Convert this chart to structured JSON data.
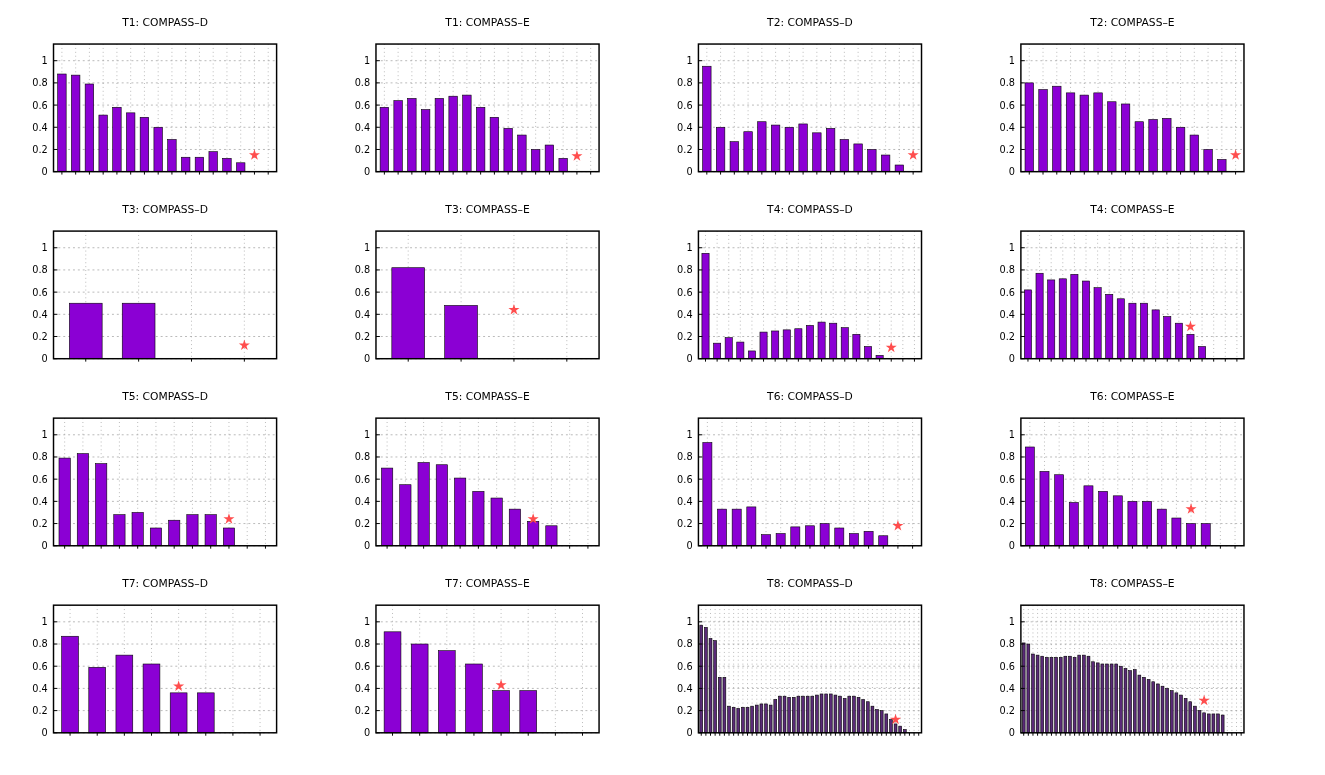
{
  "chart_data": [
    {
      "type": "bar",
      "title": "T1: COMPASS–D",
      "categories": [
        null,
        null,
        null,
        null,
        null,
        null,
        null,
        null,
        null,
        null,
        null,
        null,
        null,
        null,
        null,
        null
      ],
      "ylim": [
        0,
        1.15
      ],
      "yticks": [
        0,
        0.2,
        0.4,
        0.6,
        0.8,
        1
      ],
      "grid": true,
      "series": [
        {
          "color": "#8b00d4",
          "values": [
            0.88,
            0.87,
            0.79,
            0.51,
            0.58,
            0.53,
            0.49,
            0.4,
            0.29,
            0.13,
            0.13,
            0.18,
            0.12,
            0.08,
            null,
            null
          ]
        },
        {
          "type": "scatter",
          "marker": "star",
          "color": "#ff4d4d",
          "values": [
            null,
            null,
            null,
            null,
            null,
            null,
            null,
            null,
            null,
            null,
            null,
            null,
            null,
            null,
            0.15,
            null
          ]
        }
      ]
    },
    {
      "type": "bar",
      "title": "T1: COMPASS–E",
      "categories": [
        null,
        null,
        null,
        null,
        null,
        null,
        null,
        null,
        null,
        null,
        null,
        null,
        null,
        null,
        null,
        null
      ],
      "ylim": [
        0,
        1.15
      ],
      "yticks": [
        0,
        0.2,
        0.4,
        0.6,
        0.8,
        1
      ],
      "grid": true,
      "series": [
        {
          "color": "#8b00d4",
          "values": [
            0.58,
            0.64,
            0.66,
            0.56,
            0.66,
            0.68,
            0.69,
            0.58,
            0.49,
            0.39,
            0.33,
            0.2,
            0.24,
            0.12,
            null,
            null
          ]
        },
        {
          "type": "scatter",
          "marker": "star",
          "color": "#ff4d4d",
          "values": [
            null,
            null,
            null,
            null,
            null,
            null,
            null,
            null,
            null,
            null,
            null,
            null,
            null,
            null,
            0.14,
            null
          ]
        }
      ]
    },
    {
      "type": "bar",
      "title": "T2: COMPASS–D",
      "categories": [
        null,
        null,
        null,
        null,
        null,
        null,
        null,
        null,
        null,
        null,
        null,
        null,
        null,
        null,
        null,
        null
      ],
      "ylim": [
        0,
        1.15
      ],
      "yticks": [
        0,
        0.2,
        0.4,
        0.6,
        0.8,
        1
      ],
      "grid": true,
      "series": [
        {
          "color": "#8b00d4",
          "values": [
            0.95,
            0.4,
            0.27,
            0.36,
            0.45,
            0.42,
            0.4,
            0.43,
            0.35,
            0.39,
            0.29,
            0.25,
            0.2,
            0.15,
            0.06,
            null
          ]
        },
        {
          "type": "scatter",
          "marker": "star",
          "color": "#ff4d4d",
          "values": [
            null,
            null,
            null,
            null,
            null,
            null,
            null,
            null,
            null,
            null,
            null,
            null,
            null,
            null,
            null,
            0.15
          ]
        }
      ]
    },
    {
      "type": "bar",
      "title": "T2: COMPASS–E",
      "categories": [
        null,
        null,
        null,
        null,
        null,
        null,
        null,
        null,
        null,
        null,
        null,
        null,
        null,
        null,
        null,
        null
      ],
      "ylim": [
        0,
        1.15
      ],
      "yticks": [
        0,
        0.2,
        0.4,
        0.6,
        0.8,
        1
      ],
      "grid": true,
      "series": [
        {
          "color": "#8b00d4",
          "values": [
            0.8,
            0.74,
            0.77,
            0.71,
            0.69,
            0.71,
            0.63,
            0.61,
            0.45,
            0.47,
            0.48,
            0.4,
            0.33,
            0.2,
            0.11,
            null
          ]
        },
        {
          "type": "scatter",
          "marker": "star",
          "color": "#ff4d4d",
          "values": [
            null,
            null,
            null,
            null,
            null,
            null,
            null,
            null,
            null,
            null,
            null,
            null,
            null,
            null,
            null,
            0.15
          ]
        }
      ]
    },
    {
      "type": "bar",
      "title": "T3: COMPASS–D",
      "categories": [
        null,
        null,
        null,
        null
      ],
      "ylim": [
        0,
        1.15
      ],
      "yticks": [
        0,
        0.2,
        0.4,
        0.6,
        0.8,
        1
      ],
      "grid": true,
      "series": [
        {
          "color": "#8b00d4",
          "values": [
            0.5,
            0.5,
            null,
            null
          ]
        },
        {
          "type": "scatter",
          "marker": "star",
          "color": "#ff4d4d",
          "values": [
            null,
            null,
            null,
            0.12
          ]
        }
      ]
    },
    {
      "type": "bar",
      "title": "T3: COMPASS–E",
      "categories": [
        null,
        null,
        null,
        null
      ],
      "ylim": [
        0,
        1.15
      ],
      "yticks": [
        0,
        0.2,
        0.4,
        0.6,
        0.8,
        1
      ],
      "grid": true,
      "series": [
        {
          "color": "#8b00d4",
          "values": [
            0.82,
            0.48,
            null,
            null
          ]
        },
        {
          "type": "scatter",
          "marker": "star",
          "color": "#ff4d4d",
          "values": [
            null,
            null,
            0.44,
            null
          ]
        }
      ]
    },
    {
      "type": "bar",
      "title": "T4: COMPASS–D",
      "categories": [
        null,
        null,
        null,
        null,
        null,
        null,
        null,
        null,
        null,
        null,
        null,
        null,
        null,
        null,
        null,
        null,
        null,
        null,
        null
      ],
      "ylim": [
        0,
        1.15
      ],
      "yticks": [
        0,
        0.2,
        0.4,
        0.6,
        0.8,
        1
      ],
      "grid": true,
      "series": [
        {
          "color": "#8b00d4",
          "values": [
            0.95,
            0.14,
            0.19,
            0.15,
            0.07,
            0.24,
            0.25,
            0.26,
            0.27,
            0.3,
            0.33,
            0.32,
            0.28,
            0.22,
            0.11,
            0.03,
            null,
            null,
            null
          ]
        },
        {
          "type": "scatter",
          "marker": "star",
          "color": "#ff4d4d",
          "values": [
            null,
            null,
            null,
            null,
            null,
            null,
            null,
            null,
            null,
            null,
            null,
            null,
            null,
            null,
            null,
            null,
            0.1,
            null,
            null
          ]
        }
      ]
    },
    {
      "type": "bar",
      "title": "T4: COMPASS–E",
      "categories": [
        null,
        null,
        null,
        null,
        null,
        null,
        null,
        null,
        null,
        null,
        null,
        null,
        null,
        null,
        null,
        null,
        null,
        null,
        null
      ],
      "ylim": [
        0,
        1.15
      ],
      "yticks": [
        0,
        0.2,
        0.4,
        0.6,
        0.8,
        1
      ],
      "grid": true,
      "series": [
        {
          "color": "#8b00d4",
          "values": [
            0.62,
            0.77,
            0.71,
            0.72,
            0.76,
            0.7,
            0.64,
            0.58,
            0.54,
            0.5,
            0.5,
            0.44,
            0.38,
            0.32,
            0.22,
            0.11,
            null,
            null,
            null
          ]
        },
        {
          "type": "scatter",
          "marker": "star",
          "color": "#ff4d4d",
          "values": [
            null,
            null,
            null,
            null,
            null,
            null,
            null,
            null,
            null,
            null,
            null,
            null,
            null,
            null,
            0.29,
            null,
            null,
            null,
            null
          ]
        }
      ]
    },
    {
      "type": "bar",
      "title": "T5: COMPASS–D",
      "categories": [
        null,
        null,
        null,
        null,
        null,
        null,
        null,
        null,
        null,
        null,
        null,
        null
      ],
      "ylim": [
        0,
        1.15
      ],
      "yticks": [
        0,
        0.2,
        0.4,
        0.6,
        0.8,
        1
      ],
      "grid": true,
      "series": [
        {
          "color": "#8b00d4",
          "values": [
            0.79,
            0.83,
            0.74,
            0.28,
            0.3,
            0.16,
            0.23,
            0.28,
            0.28,
            0.16,
            null,
            null
          ]
        },
        {
          "type": "scatter",
          "marker": "star",
          "color": "#ff4d4d",
          "values": [
            null,
            null,
            null,
            null,
            null,
            null,
            null,
            null,
            null,
            0.24,
            null,
            null
          ]
        }
      ]
    },
    {
      "type": "bar",
      "title": "T5: COMPASS–E",
      "categories": [
        null,
        null,
        null,
        null,
        null,
        null,
        null,
        null,
        null,
        null,
        null,
        null
      ],
      "ylim": [
        0,
        1.15
      ],
      "yticks": [
        0,
        0.2,
        0.4,
        0.6,
        0.8,
        1
      ],
      "grid": true,
      "series": [
        {
          "color": "#8b00d4",
          "values": [
            0.7,
            0.55,
            0.75,
            0.73,
            0.61,
            0.49,
            0.43,
            0.33,
            0.22,
            0.18,
            null,
            null
          ]
        },
        {
          "type": "scatter",
          "marker": "star",
          "color": "#ff4d4d",
          "values": [
            null,
            null,
            null,
            null,
            null,
            null,
            null,
            null,
            0.24,
            null,
            null,
            null
          ]
        }
      ]
    },
    {
      "type": "bar",
      "title": "T6: COMPASS–D",
      "categories": [
        null,
        null,
        null,
        null,
        null,
        null,
        null,
        null,
        null,
        null,
        null,
        null,
        null,
        null,
        null
      ],
      "ylim": [
        0,
        1.15
      ],
      "yticks": [
        0,
        0.2,
        0.4,
        0.6,
        0.8,
        1
      ],
      "grid": true,
      "series": [
        {
          "color": "#8b00d4",
          "values": [
            0.93,
            0.33,
            0.33,
            0.35,
            0.1,
            0.11,
            0.17,
            0.18,
            0.2,
            0.16,
            0.11,
            0.13,
            0.09,
            null,
            null
          ]
        },
        {
          "type": "scatter",
          "marker": "star",
          "color": "#ff4d4d",
          "values": [
            null,
            null,
            null,
            null,
            null,
            null,
            null,
            null,
            null,
            null,
            null,
            null,
            null,
            0.18,
            null
          ]
        }
      ]
    },
    {
      "type": "bar",
      "title": "T6: COMPASS–E",
      "categories": [
        null,
        null,
        null,
        null,
        null,
        null,
        null,
        null,
        null,
        null,
        null,
        null,
        null,
        null,
        null
      ],
      "ylim": [
        0,
        1.15
      ],
      "yticks": [
        0,
        0.2,
        0.4,
        0.6,
        0.8,
        1
      ],
      "grid": true,
      "series": [
        {
          "color": "#8b00d4",
          "values": [
            0.89,
            0.67,
            0.64,
            0.39,
            0.54,
            0.49,
            0.45,
            0.4,
            0.4,
            0.33,
            0.25,
            0.2,
            0.2,
            null,
            null
          ]
        },
        {
          "type": "scatter",
          "marker": "star",
          "color": "#ff4d4d",
          "values": [
            null,
            null,
            null,
            null,
            null,
            null,
            null,
            null,
            null,
            null,
            null,
            0.33,
            null,
            null,
            null
          ]
        }
      ]
    },
    {
      "type": "bar",
      "title": "T7: COMPASS–D",
      "categories": [
        null,
        null,
        null,
        null,
        null,
        null,
        null,
        null
      ],
      "ylim": [
        0,
        1.15
      ],
      "yticks": [
        0,
        0.2,
        0.4,
        0.6,
        0.8,
        1
      ],
      "grid": true,
      "series": [
        {
          "color": "#8b00d4",
          "values": [
            0.87,
            0.59,
            0.7,
            0.62,
            0.36,
            0.36,
            null,
            null
          ]
        },
        {
          "type": "scatter",
          "marker": "star",
          "color": "#ff4d4d",
          "values": [
            null,
            null,
            null,
            null,
            0.42,
            null,
            null,
            null
          ]
        }
      ]
    },
    {
      "type": "bar",
      "title": "T7: COMPASS–E",
      "categories": [
        null,
        null,
        null,
        null,
        null,
        null,
        null,
        null
      ],
      "ylim": [
        0,
        1.15
      ],
      "yticks": [
        0,
        0.2,
        0.4,
        0.6,
        0.8,
        1
      ],
      "grid": true,
      "series": [
        {
          "color": "#8b00d4",
          "values": [
            0.91,
            0.8,
            0.74,
            0.62,
            0.38,
            0.38,
            null,
            null
          ]
        },
        {
          "type": "scatter",
          "marker": "star",
          "color": "#ff4d4d",
          "values": [
            null,
            null,
            null,
            null,
            0.43,
            null,
            null,
            null
          ]
        }
      ]
    },
    {
      "type": "bar",
      "title": "T8: COMPASS–D",
      "categories": [
        null,
        null,
        null,
        null,
        null,
        null,
        null,
        null,
        null,
        null,
        null,
        null,
        null,
        null,
        null,
        null,
        null,
        null,
        null,
        null,
        null,
        null,
        null,
        null,
        null,
        null,
        null,
        null,
        null,
        null,
        null,
        null,
        null,
        null,
        null,
        null,
        null,
        null,
        null,
        null,
        null,
        null,
        null,
        null,
        null,
        null,
        null,
        null
      ],
      "ylim": [
        0,
        1.15
      ],
      "yticks": [
        0,
        0.2,
        0.4,
        0.6,
        0.8,
        1
      ],
      "grid": true,
      "series": [
        {
          "color": "#5a2a78",
          "values": [
            0.97,
            0.95,
            0.85,
            0.83,
            0.5,
            0.5,
            0.24,
            0.23,
            0.22,
            0.23,
            0.23,
            0.24,
            0.25,
            0.26,
            0.26,
            0.25,
            0.3,
            0.33,
            0.33,
            0.32,
            0.32,
            0.33,
            0.33,
            0.33,
            0.33,
            0.34,
            0.35,
            0.35,
            0.35,
            0.34,
            0.33,
            0.31,
            0.33,
            0.33,
            0.32,
            0.3,
            0.28,
            0.24,
            0.21,
            0.2,
            0.17,
            0.12,
            0.08,
            0.06,
            0.03,
            null,
            null,
            null
          ]
        },
        {
          "type": "scatter",
          "marker": "star",
          "color": "#ff4d4d",
          "values": [
            null,
            null,
            null,
            null,
            null,
            null,
            null,
            null,
            null,
            null,
            null,
            null,
            null,
            null,
            null,
            null,
            null,
            null,
            null,
            null,
            null,
            null,
            null,
            null,
            null,
            null,
            null,
            null,
            null,
            null,
            null,
            null,
            null,
            null,
            null,
            null,
            null,
            null,
            null,
            null,
            null,
            null,
            0.12,
            null,
            null,
            null,
            null,
            null
          ]
        }
      ]
    },
    {
      "type": "bar",
      "title": "T8: COMPASS–E",
      "categories": [
        null,
        null,
        null,
        null,
        null,
        null,
        null,
        null,
        null,
        null,
        null,
        null,
        null,
        null,
        null,
        null,
        null,
        null,
        null,
        null,
        null,
        null,
        null,
        null,
        null,
        null,
        null,
        null,
        null,
        null,
        null,
        null,
        null,
        null,
        null,
        null,
        null,
        null,
        null,
        null,
        null,
        null,
        null,
        null,
        null,
        null,
        null,
        null
      ],
      "ylim": [
        0,
        1.15
      ],
      "yticks": [
        0,
        0.2,
        0.4,
        0.6,
        0.8,
        1
      ],
      "grid": true,
      "series": [
        {
          "color": "#5a2a78",
          "values": [
            0.81,
            0.8,
            0.71,
            0.7,
            0.69,
            0.68,
            0.68,
            0.68,
            0.68,
            0.69,
            0.69,
            0.68,
            0.7,
            0.7,
            0.69,
            0.64,
            0.63,
            0.62,
            0.62,
            0.62,
            0.62,
            0.6,
            0.58,
            0.56,
            0.57,
            0.52,
            0.5,
            0.48,
            0.46,
            0.44,
            0.42,
            0.4,
            0.38,
            0.36,
            0.34,
            0.31,
            0.28,
            0.24,
            0.2,
            0.18,
            0.17,
            0.17,
            0.17,
            0.16,
            null,
            null,
            null,
            null
          ]
        },
        {
          "type": "scatter",
          "marker": "star",
          "color": "#ff4d4d",
          "values": [
            null,
            null,
            null,
            null,
            null,
            null,
            null,
            null,
            null,
            null,
            null,
            null,
            null,
            null,
            null,
            null,
            null,
            null,
            null,
            null,
            null,
            null,
            null,
            null,
            null,
            null,
            null,
            null,
            null,
            null,
            null,
            null,
            null,
            null,
            null,
            null,
            null,
            null,
            null,
            0.29,
            null,
            null,
            null,
            null,
            null,
            null,
            null,
            null
          ]
        }
      ]
    }
  ]
}
